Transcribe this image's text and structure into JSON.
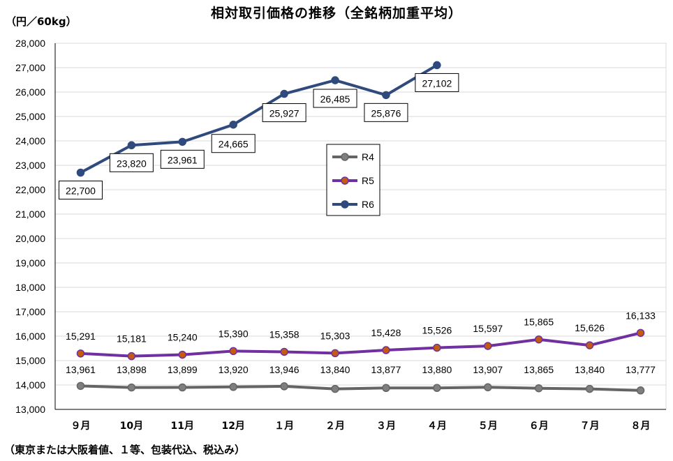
{
  "chart_data": {
    "type": "line",
    "title": "相対取引価格の推移（全銘柄加重平均）",
    "ylabel": "（円／60kg）",
    "footnote": "（東京または大阪着値、１等、包装代込、税込み）",
    "categories": [
      "９月",
      "10月",
      "11月",
      "12月",
      "１月",
      "２月",
      "３月",
      "４月",
      "５月",
      "６月",
      "７月",
      "８月"
    ],
    "ylim": [
      13000,
      28000
    ],
    "ytick_step": 1000,
    "grid": true,
    "legend_position": "center",
    "series": [
      {
        "name": "R4",
        "color": "#646464",
        "marker_fill": "#7f7f7f",
        "values": [
          13961,
          13898,
          13899,
          13920,
          13946,
          13840,
          13877,
          13880,
          13907,
          13865,
          13840,
          13777
        ]
      },
      {
        "name": "R5",
        "color": "#7030a0",
        "marker_fill": "#c55a11",
        "values": [
          15291,
          15181,
          15240,
          15390,
          15358,
          15303,
          15428,
          15526,
          15597,
          15865,
          15626,
          16133
        ]
      },
      {
        "name": "R6",
        "color": "#2f4a7c",
        "marker_fill": "#2f4a7c",
        "values": [
          22700,
          23820,
          23961,
          24665,
          25927,
          26485,
          25876,
          27102,
          null,
          null,
          null,
          null
        ]
      }
    ]
  }
}
